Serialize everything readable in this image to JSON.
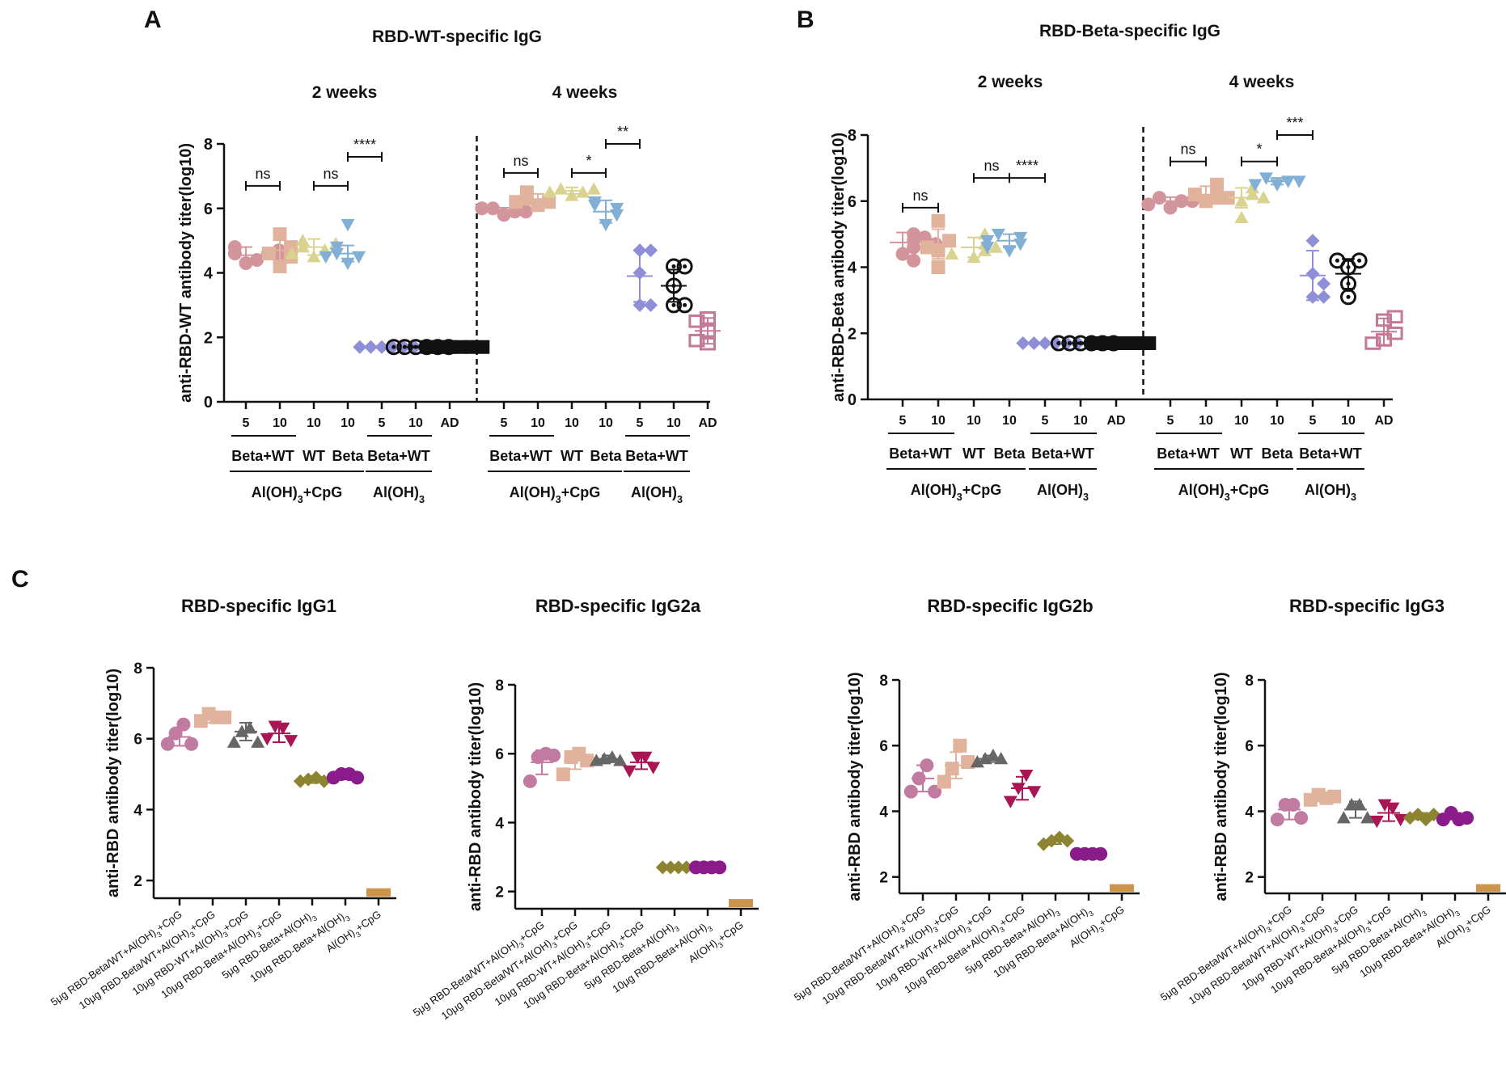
{
  "panel_labels": {
    "a": "A",
    "b": "B",
    "c": "C"
  },
  "chart_data": [
    {
      "id": "A",
      "type": "scatter",
      "title": "RBD-WT-specific IgG",
      "ylabel": "anti-RBD-WT antibody titer(log10)",
      "ylim": [
        0,
        8
      ],
      "yticks": [
        "0",
        "2",
        "4",
        "6",
        "8"
      ],
      "periods": [
        "2 weeks",
        "4 weeks"
      ],
      "groups": [
        {
          "tick": "5",
          "mean": 4.55,
          "sd": 0.25,
          "color": "#d3959c",
          "marker": "circle",
          "points": [
            4.3,
            4.4,
            4.6,
            4.6,
            4.8,
            4.5,
            4.7
          ]
        },
        {
          "tick": "10",
          "mean": 4.7,
          "sd": 0.45,
          "color": "#e1b39d",
          "marker": "square",
          "points": [
            4.2,
            4.5,
            4.8,
            5.2,
            4.6
          ]
        },
        {
          "tick": "10",
          "mean": 4.8,
          "sd": 0.25,
          "color": "#d9d38f",
          "marker": "triangle-up",
          "points": [
            4.5,
            4.7,
            4.8,
            5.0,
            4.9,
            4.6
          ]
        },
        {
          "tick": "10",
          "mean": 4.6,
          "sd": 0.25,
          "color": "#82afd6",
          "marker": "triangle-down",
          "points": [
            4.3,
            4.5,
            4.6,
            4.8,
            4.5,
            5.5
          ]
        },
        {
          "tick": "5",
          "mean": 1.7,
          "sd": 0.02,
          "color": "#8f8fd8",
          "marker": "diamond",
          "points": [
            1.7,
            1.7,
            1.7,
            1.7,
            1.7,
            1.7
          ]
        },
        {
          "tick": "10",
          "mean": 1.7,
          "sd": 0.02,
          "color": "#111111",
          "marker": "ring",
          "points": [
            1.7,
            1.7,
            1.7,
            1.7,
            1.7,
            1.7
          ]
        },
        {
          "tick": "AD",
          "mean": 1.7,
          "sd": 0.02,
          "color": "#111111",
          "marker": "square",
          "points": [
            1.7,
            1.7,
            1.7,
            1.7,
            1.7,
            1.7
          ]
        },
        {
          "tick": "5",
          "mean": 5.9,
          "sd": 0.12,
          "color": "#d3959c",
          "marker": "circle",
          "points": [
            5.8,
            5.9,
            6.0,
            5.9,
            6.0
          ]
        },
        {
          "tick": "10",
          "mean": 6.25,
          "sd": 0.2,
          "color": "#e1b39d",
          "marker": "square",
          "points": [
            6.1,
            6.2,
            6.3,
            6.5,
            6.2
          ]
        },
        {
          "tick": "10",
          "mean": 6.55,
          "sd": 0.1,
          "color": "#d9d38f",
          "marker": "triangle-up",
          "points": [
            6.4,
            6.5,
            6.6,
            6.6,
            6.5
          ]
        },
        {
          "tick": "10",
          "mean": 5.9,
          "sd": 0.35,
          "color": "#82afd6",
          "marker": "triangle-down",
          "points": [
            5.5,
            5.8,
            6.0,
            6.1,
            6.2
          ]
        },
        {
          "tick": "5",
          "mean": 3.9,
          "sd": 0.8,
          "color": "#8f8fd8",
          "marker": "diamond",
          "points": [
            3.0,
            3.0,
            4.7,
            4.7,
            4.0
          ]
        },
        {
          "tick": "10",
          "mean": 3.6,
          "sd": 0.5,
          "color": "#111111",
          "marker": "ring",
          "points": [
            3.0,
            3.0,
            3.6,
            4.2,
            4.2
          ]
        },
        {
          "tick": "AD",
          "mean": 2.2,
          "sd": 0.4,
          "color": "#c47a96",
          "marker": "open-square",
          "points": [
            1.8,
            2.2,
            2.6,
            1.9,
            2.5
          ]
        }
      ],
      "significance": [
        {
          "label": "ns",
          "from": 0,
          "to": 1,
          "y": 6.7
        },
        {
          "label": "ns",
          "from": 2,
          "to": 3,
          "y": 6.7
        },
        {
          "label": "****",
          "from": 3,
          "to": 4,
          "y": 7.6
        },
        {
          "label": "ns",
          "from": 7,
          "to": 8,
          "y": 7.1
        },
        {
          "label": "*",
          "from": 9,
          "to": 10,
          "y": 7.1
        },
        {
          "label": "**",
          "from": 10,
          "to": 11,
          "y": 8.0
        }
      ],
      "group_labels": [
        "Beta+WT",
        "WT",
        "Beta",
        "Beta+WT",
        "Beta+WT",
        "WT",
        "Beta",
        "Beta+WT"
      ],
      "adjuvant_labels": [
        "Al(OH)3+CpG",
        "Al(OH)3",
        "Al(OH)3+CpG",
        "Al(OH)3"
      ]
    },
    {
      "id": "B",
      "type": "scatter",
      "title": "RBD-Beta-specific IgG",
      "ylabel": "anti-RBD-Beta antibody titer(log10)",
      "ylim": [
        0,
        8
      ],
      "yticks": [
        "0",
        "2",
        "4",
        "6",
        "8"
      ],
      "periods": [
        "2 weeks",
        "4 weeks"
      ],
      "groups": [
        {
          "tick": "5",
          "mean": 4.75,
          "sd": 0.3,
          "color": "#d3959c",
          "marker": "circle",
          "points": [
            4.4,
            4.6,
            4.8,
            5.0,
            4.2,
            4.9,
            4.7
          ]
        },
        {
          "tick": "10",
          "mean": 4.7,
          "sd": 0.45,
          "color": "#e1b39d",
          "marker": "square",
          "points": [
            4.0,
            4.5,
            4.8,
            5.4,
            4.6
          ]
        },
        {
          "tick": "10",
          "mean": 4.6,
          "sd": 0.3,
          "color": "#d9d38f",
          "marker": "triangle-up",
          "points": [
            4.3,
            4.5,
            4.7,
            5.0,
            4.6,
            4.4
          ]
        },
        {
          "tick": "10",
          "mean": 4.8,
          "sd": 0.2,
          "color": "#82afd6",
          "marker": "triangle-down",
          "points": [
            4.5,
            4.7,
            4.9,
            5.0,
            4.8,
            4.6
          ]
        },
        {
          "tick": "5",
          "mean": 1.7,
          "sd": 0.02,
          "color": "#8f8fd8",
          "marker": "diamond",
          "points": [
            1.7,
            1.7,
            1.7,
            1.7,
            1.7,
            1.7
          ]
        },
        {
          "tick": "10",
          "mean": 1.7,
          "sd": 0.02,
          "color": "#111111",
          "marker": "ring",
          "points": [
            1.7,
            1.7,
            1.7,
            1.7,
            1.7,
            1.7
          ]
        },
        {
          "tick": "AD",
          "mean": 1.7,
          "sd": 0.02,
          "color": "#111111",
          "marker": "square",
          "points": [
            1.7,
            1.7,
            1.7,
            1.7,
            1.7,
            1.7
          ]
        },
        {
          "tick": "5",
          "mean": 6.0,
          "sd": 0.12,
          "color": "#d3959c",
          "marker": "circle",
          "points": [
            5.8,
            6.0,
            6.1,
            6.0,
            5.9
          ]
        },
        {
          "tick": "10",
          "mean": 6.2,
          "sd": 0.25,
          "color": "#e1b39d",
          "marker": "square",
          "points": [
            6.0,
            6.1,
            6.2,
            6.5,
            6.1
          ]
        },
        {
          "tick": "10",
          "mean": 6.1,
          "sd": 0.3,
          "color": "#d9d38f",
          "marker": "triangle-up",
          "points": [
            5.5,
            6.0,
            6.2,
            6.4,
            6.1
          ]
        },
        {
          "tick": "10",
          "mean": 6.6,
          "sd": 0.1,
          "color": "#82afd6",
          "marker": "triangle-down",
          "points": [
            6.5,
            6.6,
            6.7,
            6.6,
            6.5
          ]
        },
        {
          "tick": "5",
          "mean": 3.75,
          "sd": 0.75,
          "color": "#8f8fd8",
          "marker": "diamond",
          "points": [
            3.1,
            3.1,
            4.8,
            3.8,
            3.5
          ]
        },
        {
          "tick": "10",
          "mean": 3.8,
          "sd": 0.45,
          "color": "#111111",
          "marker": "ring",
          "points": [
            3.1,
            3.5,
            4.0,
            4.2,
            4.2
          ]
        },
        {
          "tick": "AD",
          "mean": 2.05,
          "sd": 0.4,
          "color": "#c47a96",
          "marker": "open-square",
          "points": [
            1.8,
            2.0,
            2.4,
            1.7,
            2.5
          ]
        }
      ],
      "significance": [
        {
          "label": "ns",
          "from": 0,
          "to": 1,
          "y": 5.8
        },
        {
          "label": "ns",
          "from": 2,
          "to": 3,
          "y": 6.7
        },
        {
          "label": "****",
          "from": 3,
          "to": 4,
          "y": 6.7
        },
        {
          "label": "ns",
          "from": 7,
          "to": 8,
          "y": 7.2
        },
        {
          "label": "*",
          "from": 9,
          "to": 10,
          "y": 7.2
        },
        {
          "label": "***",
          "from": 10,
          "to": 11,
          "y": 8.0
        }
      ],
      "group_labels": [
        "Beta+WT",
        "WT",
        "Beta",
        "Beta+WT",
        "Beta+WT",
        "WT",
        "Beta",
        "Beta+WT"
      ],
      "adjuvant_labels": [
        "Al(OH)3+CpG",
        "Al(OH)3",
        "Al(OH)3+CpG",
        "Al(OH)3"
      ]
    },
    {
      "id": "C1",
      "type": "scatter",
      "title": "RBD-specific IgG1",
      "ylabel": "anti-RBD antibody titer(log10)",
      "ylim": [
        1.5,
        8
      ],
      "yticks": [
        "2",
        "4",
        "6",
        "8"
      ],
      "categories": [
        "5μg RBD-Beta/WT+Al(OH)3+CpG",
        "10μg RBD-Beta/WT+Al(OH)3+CpG",
        "10μg RBD-WT+Al(OH)3+CpG",
        "10μg RBD-Beta+Al(OH)3+CpG",
        "5μg RBD-Beta+Al(OH)3",
        "10μg RBD-Beta+Al(OH)3",
        "Al(OH)3+CpG"
      ],
      "groups": [
        {
          "mean": 6.05,
          "sd": 0.25,
          "color": "#c27ba0",
          "marker": "circle",
          "points": [
            5.85,
            6.15,
            6.4,
            5.85
          ]
        },
        {
          "mean": 6.6,
          "sd": 0.15,
          "color": "#e1b39d",
          "marker": "square",
          "points": [
            6.5,
            6.7,
            6.6,
            6.6
          ]
        },
        {
          "mean": 6.2,
          "sd": 0.25,
          "color": "#666666",
          "marker": "triangle-up",
          "points": [
            5.9,
            6.2,
            6.3,
            5.9
          ]
        },
        {
          "mean": 6.15,
          "sd": 0.25,
          "color": "#a81654",
          "marker": "triangle-down",
          "points": [
            6.0,
            6.35,
            6.3,
            5.95
          ]
        },
        {
          "mean": 4.85,
          "sd": 0.1,
          "color": "#8c8431",
          "marker": "diamond",
          "points": [
            4.8,
            4.85,
            4.9,
            4.8
          ]
        },
        {
          "mean": 4.95,
          "sd": 0.1,
          "color": "#8b1a8b",
          "marker": "circle",
          "points": [
            4.9,
            5.0,
            5.0,
            4.9
          ]
        },
        {
          "mean": 1.7,
          "sd": 0.0,
          "color": "#cd9549",
          "marker": "square",
          "points": [
            1.7,
            1.7,
            1.7
          ]
        }
      ]
    },
    {
      "id": "C2",
      "type": "scatter",
      "title": "RBD-specific IgG2a",
      "ylabel": "anti-RBD antibody titer(log10)",
      "ylim": [
        1.5,
        8
      ],
      "yticks": [
        "2",
        "4",
        "6",
        "8"
      ],
      "categories": [
        "5μg RBD-Beta/WT+Al(OH)3+CpG",
        "10μg RBD-Beta/WT+Al(OH)3+CpG",
        "10μg RBD-WT+Al(OH)3+CpG",
        "10μg RBD-Beta+Al(OH)3+CpG",
        "5μg RBD-Beta+Al(OH)3",
        "10μg RBD-Beta+Al(OH)3",
        "Al(OH)3+CpG"
      ],
      "groups": [
        {
          "mean": 5.75,
          "sd": 0.35,
          "color": "#c27ba0",
          "marker": "circle",
          "points": [
            5.2,
            5.9,
            6.0,
            5.95
          ]
        },
        {
          "mean": 5.8,
          "sd": 0.25,
          "color": "#e1b39d",
          "marker": "square",
          "points": [
            5.4,
            5.9,
            6.0,
            5.8
          ]
        },
        {
          "mean": 5.85,
          "sd": 0.1,
          "color": "#666666",
          "marker": "triangle-up",
          "points": [
            5.8,
            5.85,
            5.9,
            5.8
          ]
        },
        {
          "mean": 5.75,
          "sd": 0.2,
          "color": "#a81654",
          "marker": "triangle-down",
          "points": [
            5.5,
            5.9,
            5.9,
            5.6
          ]
        },
        {
          "mean": 2.7,
          "sd": 0.0,
          "color": "#8c8431",
          "marker": "diamond",
          "points": [
            2.7,
            2.7,
            2.7,
            2.7
          ]
        },
        {
          "mean": 2.7,
          "sd": 0.0,
          "color": "#8b1a8b",
          "marker": "circle",
          "points": [
            2.7,
            2.7,
            2.7,
            2.7
          ]
        },
        {
          "mean": 1.7,
          "sd": 0.0,
          "color": "#cd9549",
          "marker": "square",
          "points": [
            1.7,
            1.7,
            1.7
          ]
        }
      ]
    },
    {
      "id": "C3",
      "type": "scatter",
      "title": "RBD-specific IgG2b",
      "ylabel": "anti-RBD antibody titer(log10)",
      "ylim": [
        1.5,
        8
      ],
      "yticks": [
        "2",
        "4",
        "6",
        "8"
      ],
      "categories": [
        "5μg RBD-Beta/WT+Al(OH)3+CpG",
        "10μg RBD-Beta/WT+Al(OH)3+CpG",
        "10μg RBD-WT+Al(OH)3+CpG",
        "10μg RBD-Beta+Al(OH)3+CpG",
        "5μg RBD-Beta+Al(OH)3",
        "10μg RBD-Beta+Al(OH)3",
        "Al(OH)3+CpG"
      ],
      "groups": [
        {
          "mean": 5.0,
          "sd": 0.4,
          "color": "#c27ba0",
          "marker": "circle",
          "points": [
            4.6,
            5.0,
            5.4,
            4.6
          ]
        },
        {
          "mean": 5.4,
          "sd": 0.4,
          "color": "#e1b39d",
          "marker": "square",
          "points": [
            4.9,
            5.3,
            6.0,
            5.5
          ]
        },
        {
          "mean": 5.6,
          "sd": 0.1,
          "color": "#666666",
          "marker": "triangle-up",
          "points": [
            5.5,
            5.6,
            5.7,
            5.6
          ]
        },
        {
          "mean": 4.7,
          "sd": 0.35,
          "color": "#a81654",
          "marker": "triangle-down",
          "points": [
            4.3,
            4.7,
            5.1,
            4.6
          ]
        },
        {
          "mean": 3.1,
          "sd": 0.1,
          "color": "#8c8431",
          "marker": "diamond",
          "points": [
            3.0,
            3.1,
            3.2,
            3.1
          ]
        },
        {
          "mean": 2.7,
          "sd": 0.0,
          "color": "#8b1a8b",
          "marker": "circle",
          "points": [
            2.7,
            2.7,
            2.7,
            2.7
          ]
        },
        {
          "mean": 1.7,
          "sd": 0.0,
          "color": "#cd9549",
          "marker": "square",
          "points": [
            1.7,
            1.7,
            1.7
          ]
        }
      ]
    },
    {
      "id": "C4",
      "type": "scatter",
      "title": "RBD-specific IgG3",
      "ylabel": "anti-RBD antibody titer(log10)",
      "ylim": [
        1.5,
        8
      ],
      "yticks": [
        "2",
        "4",
        "6",
        "8"
      ],
      "categories": [
        "5μg RBD-Beta/WT+Al(OH)3+CpG",
        "10μg RBD-Beta/WT+Al(OH)3+CpG",
        "10μg RBD-WT+Al(OH)3+CpG",
        "10μg RBD-Beta+Al(OH)3+CpG",
        "5μg RBD-Beta+Al(OH)3",
        "10μg RBD-Beta+Al(OH)3",
        "Al(OH)3+CpG"
      ],
      "groups": [
        {
          "mean": 4.05,
          "sd": 0.3,
          "color": "#c27ba0",
          "marker": "circle",
          "points": [
            3.75,
            4.2,
            4.2,
            3.8
          ]
        },
        {
          "mean": 4.4,
          "sd": 0.1,
          "color": "#e1b39d",
          "marker": "square",
          "points": [
            4.35,
            4.5,
            4.4,
            4.45
          ]
        },
        {
          "mean": 4.05,
          "sd": 0.25,
          "color": "#666666",
          "marker": "triangle-up",
          "points": [
            3.8,
            4.2,
            4.2,
            3.8
          ]
        },
        {
          "mean": 3.95,
          "sd": 0.25,
          "color": "#a81654",
          "marker": "triangle-down",
          "points": [
            3.7,
            4.2,
            4.1,
            3.75
          ]
        },
        {
          "mean": 3.85,
          "sd": 0.1,
          "color": "#8c8431",
          "marker": "diamond",
          "points": [
            3.8,
            3.9,
            3.75,
            3.9
          ]
        },
        {
          "mean": 3.85,
          "sd": 0.1,
          "color": "#8b1a8b",
          "marker": "circle",
          "points": [
            3.75,
            3.95,
            3.75,
            3.8
          ]
        },
        {
          "mean": 1.7,
          "sd": 0.0,
          "color": "#cd9549",
          "marker": "square",
          "points": [
            1.7,
            1.7,
            1.7
          ]
        }
      ]
    }
  ]
}
